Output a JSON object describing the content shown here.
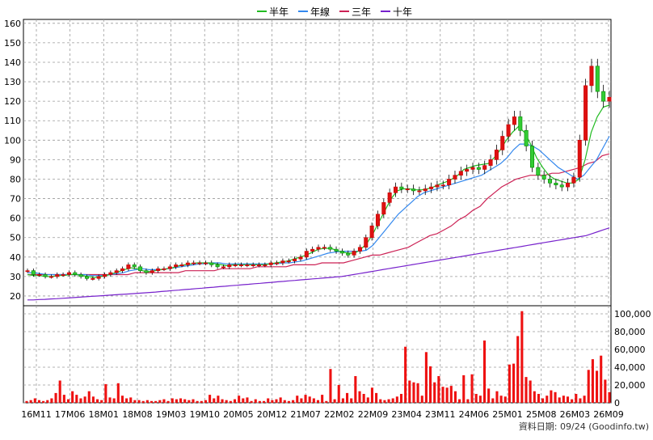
{
  "chart_data": [
    {
      "type": "candlestick",
      "legend": [
        {
          "label": "半年",
          "color": "#22bb22"
        },
        {
          "label": "年線",
          "color": "#3388ee"
        },
        {
          "label": "三年",
          "color": "#cc2255"
        },
        {
          "label": "十年",
          "color": "#7722cc"
        }
      ],
      "legend_placement": "top-center",
      "grid": true,
      "ylim": [
        15,
        162
      ],
      "y_ticks": [
        160,
        150,
        140,
        130,
        120,
        110,
        100,
        90,
        80,
        70,
        60,
        50,
        40,
        30,
        20
      ],
      "x_tick_labels": [
        "16M11",
        "17M06",
        "18M01",
        "18M08",
        "19M03",
        "19M10",
        "20M05",
        "20M12",
        "21M07",
        "22M02",
        "22M09",
        "23M04",
        "23M11",
        "24M06",
        "25M01",
        "25M08",
        "26M03",
        "26M09"
      ],
      "close_series": [
        33,
        31,
        31,
        30,
        30,
        31,
        31,
        32,
        31,
        30,
        29,
        29,
        30,
        31,
        32,
        33,
        34,
        36,
        35,
        33,
        32,
        33,
        34,
        34,
        35,
        36,
        36,
        37,
        37,
        37,
        37,
        36,
        35,
        35,
        36,
        36,
        36,
        36,
        36,
        36,
        36,
        37,
        37,
        38,
        38,
        39,
        40,
        43,
        44,
        45,
        45,
        44,
        43,
        42,
        41,
        43,
        45,
        50,
        56,
        62,
        68,
        73,
        76,
        75,
        75,
        74,
        74,
        75,
        76,
        77,
        77,
        80,
        82,
        84,
        85,
        86,
        85,
        87,
        90,
        95,
        102,
        108,
        112,
        105,
        97,
        86,
        82,
        80,
        78,
        77,
        76,
        78,
        81,
        100,
        128,
        138,
        125,
        120,
        122
      ],
      "ma_half_year": [
        31,
        30.5,
        30.5,
        30,
        30,
        30.5,
        30.5,
        31,
        31,
        30.5,
        30,
        29.5,
        30,
        30.5,
        31.5,
        32.5,
        33.5,
        34.5,
        34,
        33,
        32.5,
        33,
        33.5,
        34,
        34.5,
        35.5,
        36,
        36.5,
        37,
        37,
        37,
        36.5,
        36,
        35.5,
        36,
        36,
        36,
        36,
        36,
        36,
        36.5,
        37,
        37.5,
        38,
        39,
        40,
        41,
        42.5,
        44,
        44.5,
        44.5,
        43.5,
        42.5,
        42,
        42,
        44,
        47,
        52,
        58,
        64,
        70,
        74,
        75,
        75,
        74.5,
        74.5,
        75,
        76,
        77.5,
        78.5,
        80,
        82,
        85,
        86,
        87,
        87.5,
        88,
        91,
        95,
        100,
        104,
        107,
        104,
        98,
        91,
        86,
        82,
        80,
        79,
        78,
        78,
        80,
        90,
        104,
        112,
        117,
        118
      ],
      "ma_year": [
        32,
        32,
        31.5,
        31,
        31,
        31,
        31,
        31,
        31,
        31,
        30.5,
        30.5,
        30.5,
        31,
        31.5,
        32,
        33,
        33.5,
        34,
        33.5,
        33.5,
        33.5,
        34,
        34.5,
        35,
        35.5,
        36,
        36.5,
        36.5,
        37,
        37,
        36.5,
        36.5,
        36.5,
        36.5,
        36.5,
        36.5,
        36.5,
        36.5,
        36.5,
        37,
        37,
        37.5,
        38,
        39,
        40,
        41,
        42,
        42.5,
        43,
        43,
        43,
        43,
        43.5,
        46,
        50,
        54,
        58,
        62,
        65,
        68,
        71,
        73,
        74,
        75,
        76,
        77,
        78,
        79,
        80,
        81,
        82,
        84,
        86,
        88,
        91,
        95,
        98,
        98,
        97,
        95,
        92,
        89,
        86,
        84,
        82,
        80,
        82,
        86,
        90,
        96,
        102
      ],
      "ma_three_year": [
        31,
        31,
        31,
        31,
        31,
        31,
        31,
        31,
        31,
        31,
        31,
        31,
        31,
        31,
        31,
        32,
        32,
        32,
        32,
        32,
        32,
        32,
        33,
        33,
        33,
        33,
        33,
        34,
        34,
        34,
        34,
        34,
        35,
        35,
        35,
        35,
        35,
        36,
        36,
        36,
        36,
        37,
        37,
        37,
        37,
        38,
        39,
        40,
        41,
        41,
        42,
        43,
        44,
        45,
        47,
        49,
        51,
        52,
        54,
        56,
        59,
        61,
        64,
        66,
        70,
        73,
        76,
        78,
        80,
        81,
        82,
        82,
        82,
        83,
        83,
        84,
        85,
        86,
        88,
        89,
        92,
        93
      ],
      "ma_ten_year": [
        18,
        18,
        18.2,
        18.3,
        18.5,
        18.6,
        18.8,
        19,
        19.2,
        19.4,
        19.6,
        19.8,
        20,
        20.2,
        20.4,
        20.6,
        20.8,
        21,
        21.2,
        21.4,
        21.6,
        21.8,
        22,
        22.3,
        22.5,
        22.8,
        23,
        23.3,
        23.5,
        23.8,
        24,
        24.3,
        24.5,
        24.8,
        25,
        25.3,
        25.5,
        25.8,
        26,
        26.3,
        26.5,
        26.8,
        27,
        27.3,
        27.5,
        27.8,
        28,
        28.3,
        28.5,
        28.8,
        29,
        29.3,
        29.5,
        29.8,
        30,
        30.5,
        31,
        31.5,
        32,
        32.5,
        33,
        33.5,
        34,
        34.5,
        35,
        35.5,
        36,
        36.5,
        37,
        37.5,
        38,
        38.5,
        39,
        39.5,
        40,
        40.5,
        41,
        41.5,
        42,
        42.5,
        43,
        43.5,
        44,
        44.5,
        45,
        45.5,
        46,
        46.5,
        47,
        47.5,
        48,
        48.5,
        49,
        49.5,
        50,
        50.5,
        51,
        52,
        53,
        54,
        55
      ],
      "volume_axis": {
        "ylim": [
          0,
          100000
        ],
        "ticks": [
          0,
          20000,
          40000,
          60000,
          80000,
          100000
        ],
        "tick_labels": [
          "0",
          "20,000",
          "40,000",
          "60,000",
          "80,000",
          "100,000"
        ]
      },
      "volume_values": [
        2000,
        3000,
        5000,
        3000,
        2000,
        3000,
        5000,
        11000,
        25000,
        9000,
        4000,
        13000,
        9000,
        5000,
        7000,
        13000,
        7000,
        4000,
        3000,
        21000,
        6000,
        5000,
        22000,
        8000,
        5000,
        6000,
        3000,
        3000,
        2000,
        3000,
        2000,
        2000,
        3000,
        4000,
        2000,
        5000,
        4000,
        5000,
        4000,
        3000,
        4000,
        2000,
        2000,
        3000,
        9000,
        5000,
        8000,
        4000,
        3000,
        2000,
        4000,
        8000,
        5000,
        6000,
        2000,
        4000,
        2000,
        2000,
        5000,
        3000,
        4000,
        6000,
        3000,
        2000,
        3000,
        8000,
        5000,
        9000,
        7000,
        5000,
        3000,
        9000,
        2000,
        38000,
        4000,
        20000,
        5000,
        11000,
        5000,
        30000,
        13000,
        10000,
        6000,
        17000,
        11000,
        4000,
        3000,
        4000,
        5000,
        7000,
        10000,
        63000,
        25000,
        23000,
        22000,
        8000,
        57000,
        41000,
        23000,
        30000,
        18000,
        17000,
        19000,
        13000,
        4000,
        31000,
        4000,
        32000,
        10000,
        8000,
        70000,
        16000,
        5000,
        13000,
        8000,
        7000,
        43000,
        44000,
        75000,
        103000,
        29000,
        25000,
        13000,
        10000,
        5000,
        8000,
        14000,
        12000,
        6000,
        8000,
        7000,
        4000,
        10000,
        5000,
        8000,
        37000,
        49000,
        36000,
        53000,
        26000,
        12000
      ],
      "footer_text": "資料日期: 09/24  (Goodinfo.tw)"
    }
  ]
}
